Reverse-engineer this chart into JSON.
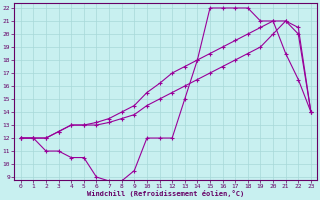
{
  "xlabel": "Windchill (Refroidissement éolien,°C)",
  "bg_color": "#c8f0f0",
  "line_color": "#990099",
  "grid_color": "#a8d8d8",
  "xlim": [
    -0.5,
    23.5
  ],
  "ylim": [
    8.8,
    22.4
  ],
  "xticks": [
    0,
    1,
    2,
    3,
    4,
    5,
    6,
    7,
    8,
    9,
    10,
    11,
    12,
    13,
    14,
    15,
    16,
    17,
    18,
    19,
    20,
    21,
    22,
    23
  ],
  "yticks": [
    9,
    10,
    11,
    12,
    13,
    14,
    15,
    16,
    17,
    18,
    19,
    20,
    21,
    22
  ],
  "line1_x": [
    0,
    1,
    2,
    3,
    4,
    5,
    6,
    7,
    8,
    9,
    10,
    11,
    12,
    13,
    14,
    15,
    16,
    17,
    18,
    19,
    20,
    21,
    22,
    23
  ],
  "line1_y": [
    12,
    12,
    11,
    11,
    10.5,
    10.5,
    9,
    8.7,
    8.7,
    9.5,
    12,
    12,
    12,
    15,
    18,
    22,
    22,
    22,
    22,
    21,
    21,
    18.5,
    16.5,
    14
  ],
  "line2_x": [
    0,
    1,
    2,
    3,
    4,
    5,
    6,
    7,
    8,
    9,
    10,
    11,
    12,
    13,
    14,
    15,
    16,
    17,
    18,
    19,
    20,
    21,
    22,
    23
  ],
  "line2_y": [
    12,
    12,
    12,
    12.5,
    13,
    13,
    13,
    13.2,
    13.5,
    13.8,
    14.5,
    15,
    15.5,
    16,
    16.5,
    17,
    17.5,
    18,
    18.5,
    19,
    20,
    21,
    20.5,
    14
  ],
  "line3_x": [
    0,
    1,
    2,
    3,
    4,
    5,
    6,
    7,
    8,
    9,
    10,
    11,
    12,
    13,
    14,
    15,
    16,
    17,
    18,
    19,
    20,
    21,
    22,
    23
  ],
  "line3_y": [
    12,
    12,
    12,
    12.5,
    13,
    13,
    13.2,
    13.5,
    14,
    14.5,
    15.5,
    16.2,
    17,
    17.5,
    18,
    18.5,
    19,
    19.5,
    20,
    20.5,
    21,
    21,
    20,
    14
  ]
}
